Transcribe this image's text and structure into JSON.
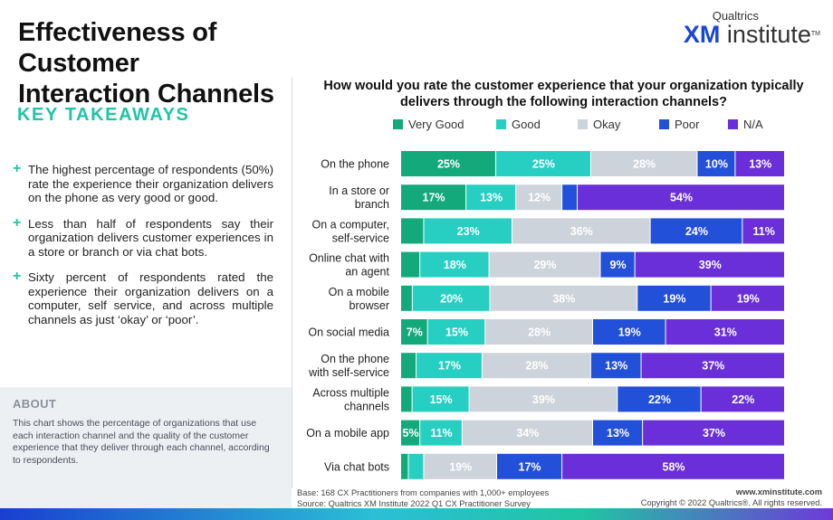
{
  "title_line1": "Effectiveness of Customer",
  "title_line2": "Interaction Channels",
  "key_takeaways_heading": "KEY TAKEAWAYS",
  "takeaways": [
    "The highest percentage of respondents (50%) rate the experience their organization delivers on the phone as very good or good.",
    "Less than half of respondents say their organization delivers customer experiences in a store or branch or via chat bots.",
    "Sixty percent of respondents rated the experience their organization delivers on a computer, self service, and across multiple channels as just ‘okay’ or ‘poor’."
  ],
  "about": {
    "heading": "ABOUT",
    "text": "This chart shows the percentage of organizations that use each interaction channel and the quality of the customer experience that they deliver through each channel, according to respondents."
  },
  "logo": {
    "top": "Qualtrics",
    "xm": "XM",
    "rest": " institute",
    "tm": "TM"
  },
  "footer": {
    "base": "Base: 168 CX Practitioners from companies with 1,000+ employees",
    "source": "Source: Qualtrics XM Institute 2022 Q1 CX Practitioner Survey",
    "website": "www.xminstitute.com",
    "copyright": "Copyright © 2022 Qualtrics®. All rights reserved."
  },
  "chart_data": {
    "type": "bar",
    "orientation": "horizontal",
    "stacked": true,
    "title": "How would you rate the customer experience that your organization typically delivers through the following interaction channels?",
    "categories": [
      [
        "On the phone"
      ],
      [
        "In a store or",
        "branch"
      ],
      [
        "On a computer,",
        "self-service"
      ],
      [
        "Online chat with",
        "an agent"
      ],
      [
        "On a mobile",
        "browser"
      ],
      [
        "On social media"
      ],
      [
        "On the phone",
        "with self-service"
      ],
      [
        "Across multiple",
        "channels"
      ],
      [
        "On a mobile app"
      ],
      [
        "Via chat bots"
      ]
    ],
    "series": [
      {
        "name": "Very Good",
        "color": "#14a97b",
        "text_color": "#ffffff",
        "values": [
          25,
          17,
          6,
          5,
          3,
          7,
          4,
          3,
          5,
          2
        ]
      },
      {
        "name": "Good",
        "color": "#27cfc3",
        "text_color": "#ffffff",
        "values": [
          25,
          13,
          23,
          18,
          20,
          15,
          17,
          15,
          11,
          4
        ]
      },
      {
        "name": "Okay",
        "color": "#cdd3da",
        "text_color": "#ffffff",
        "values": [
          28,
          12,
          36,
          29,
          38,
          28,
          28,
          39,
          34,
          19
        ]
      },
      {
        "name": "Poor",
        "color": "#2350d8",
        "text_color": "#ffffff",
        "values": [
          10,
          4,
          24,
          9,
          19,
          19,
          13,
          22,
          13,
          17
        ]
      },
      {
        "name": "N/A",
        "color": "#6a2fd8",
        "text_color": "#ffffff",
        "values": [
          13,
          54,
          11,
          39,
          19,
          31,
          37,
          22,
          37,
          58
        ]
      }
    ],
    "data_labels": [
      [
        "25%",
        "25%",
        "28%",
        "10%",
        "13%"
      ],
      [
        "17%",
        "13%",
        "12%",
        "",
        "54%"
      ],
      [
        "",
        "23%",
        "36%",
        "24%",
        "11%"
      ],
      [
        "",
        "18%",
        "29%",
        "9%",
        "39%"
      ],
      [
        "",
        "20%",
        "38%",
        "19%",
        "19%"
      ],
      [
        "7%",
        "15%",
        "28%",
        "19%",
        "31%"
      ],
      [
        "",
        "17%",
        "28%",
        "13%",
        "37%"
      ],
      [
        "",
        "15%",
        "39%",
        "22%",
        "22%"
      ],
      [
        "5%",
        "11%",
        "34%",
        "13%",
        "37%"
      ],
      [
        "",
        "",
        "19%",
        "17%",
        "58%"
      ]
    ],
    "xlim": [
      0,
      100
    ],
    "legend_position": "top"
  }
}
